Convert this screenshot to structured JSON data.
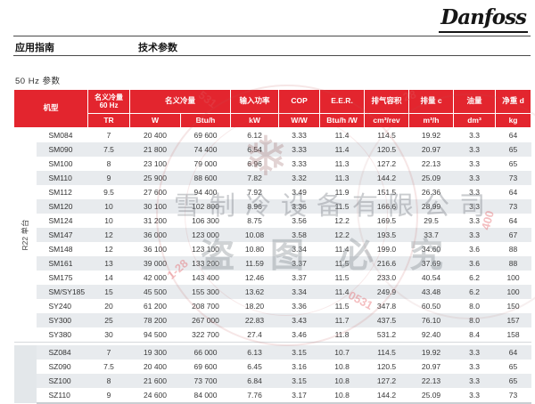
{
  "logo": "Danfoss",
  "nav": {
    "app_guide": "应用指南",
    "tech_params": "技术参数"
  },
  "section_title": "50 Hz 参数",
  "table": {
    "header": {
      "model": "机型",
      "cap60_l1": "名义冷量",
      "cap60_l2": "60 Hz",
      "cap": "名义冷量",
      "power": "输入功率",
      "cop": "COP",
      "eer": "E.E.R.",
      "disp_vol": "排气容积",
      "disp": "排量 c",
      "oil": "油量",
      "weight": "净重 d",
      "units": {
        "tr": "TR",
        "w": "W",
        "btuh": "Btu/h",
        "kw": "kW",
        "ww": "W/W",
        "btuhw": "Btu/h /W",
        "cm3rev": "cm³/rev",
        "m3h": "m³/h",
        "dm3": "dm³",
        "kg": "kg"
      }
    },
    "group_label": "R22 单台",
    "section_split": 15,
    "rows": [
      [
        "SM084",
        "7",
        "20 400",
        "69 600",
        "6.12",
        "3.33",
        "11.4",
        "114.5",
        "19.92",
        "3.3",
        "64"
      ],
      [
        "SM090",
        "7.5",
        "21 800",
        "74 400",
        "6.54",
        "3.33",
        "11.4",
        "120.5",
        "20.97",
        "3.3",
        "65"
      ],
      [
        "SM100",
        "8",
        "23 100",
        "79 000",
        "6.96",
        "3.33",
        "11.3",
        "127.2",
        "22.13",
        "3.3",
        "65"
      ],
      [
        "SM110",
        "9",
        "25 900",
        "88 600",
        "7.82",
        "3.32",
        "11.3",
        "144.2",
        "25.09",
        "3.3",
        "73"
      ],
      [
        "SM112",
        "9.5",
        "27 600",
        "94 400",
        "7.92",
        "3.49",
        "11.9",
        "151.5",
        "26.36",
        "3.3",
        "64"
      ],
      [
        "SM120",
        "10",
        "30 100",
        "102 800",
        "8.96",
        "3.36",
        "11.5",
        "166.6",
        "28.99",
        "3.3",
        "73"
      ],
      [
        "SM124",
        "10",
        "31 200",
        "106 300",
        "8.75",
        "3.56",
        "12.2",
        "169.5",
        "29.5",
        "3.3",
        "64"
      ],
      [
        "SM147",
        "12",
        "36 000",
        "123 000",
        "10.08",
        "3.58",
        "12.2",
        "193.5",
        "33.7",
        "3.3",
        "67"
      ],
      [
        "SM148",
        "12",
        "36 100",
        "123 100",
        "10.80",
        "3.34",
        "11.4",
        "199.0",
        "34.60",
        "3.6",
        "88"
      ],
      [
        "SM161",
        "13",
        "39 000",
        "133 200",
        "11.59",
        "3.37",
        "11.5",
        "216.6",
        "37.69",
        "3.6",
        "88"
      ],
      [
        "SM175",
        "14",
        "42 000",
        "143 400",
        "12.46",
        "3.37",
        "11.5",
        "233.0",
        "40.54",
        "6.2",
        "100"
      ],
      [
        "SM/SY185",
        "15",
        "45 500",
        "155 300",
        "13.62",
        "3.34",
        "11.4",
        "249.9",
        "43.48",
        "6.2",
        "100"
      ],
      [
        "SY240",
        "20",
        "61 200",
        "208 700",
        "18.20",
        "3.36",
        "11.5",
        "347.8",
        "60.50",
        "8.0",
        "150"
      ],
      [
        "SY300",
        "25",
        "78 200",
        "267 000",
        "22.83",
        "3.43",
        "11.7",
        "437.5",
        "76.10",
        "8.0",
        "157"
      ],
      [
        "SY380",
        "30",
        "94 500",
        "322 700",
        "27.4",
        "3.46",
        "11.8",
        "531.2",
        "92.40",
        "8.4",
        "158"
      ],
      [
        "SZ084",
        "7",
        "19 300",
        "66 000",
        "6.13",
        "3.15",
        "10.7",
        "114.5",
        "19.92",
        "3.3",
        "64"
      ],
      [
        "SZ090",
        "7.5",
        "20 400",
        "69 600",
        "6.45",
        "3.16",
        "10.8",
        "120.5",
        "20.97",
        "3.3",
        "65"
      ],
      [
        "SZ100",
        "8",
        "21 600",
        "73 700",
        "6.84",
        "3.15",
        "10.8",
        "127.2",
        "22.13",
        "3.3",
        "65"
      ],
      [
        "SZ110",
        "9",
        "24 600",
        "84 000",
        "7.76",
        "3.17",
        "10.8",
        "144.2",
        "25.09",
        "3.3",
        "73"
      ]
    ]
  },
  "watermark": {
    "company": "雪制冷设备有限公司",
    "notice": "盗图必究",
    "flake": "❄",
    "digits": [
      "531",
      "28",
      "400",
      "1-28",
      "0531"
    ]
  },
  "colors": {
    "header_red": "#e3252e",
    "stripe_grey": "#e8ebee"
  }
}
